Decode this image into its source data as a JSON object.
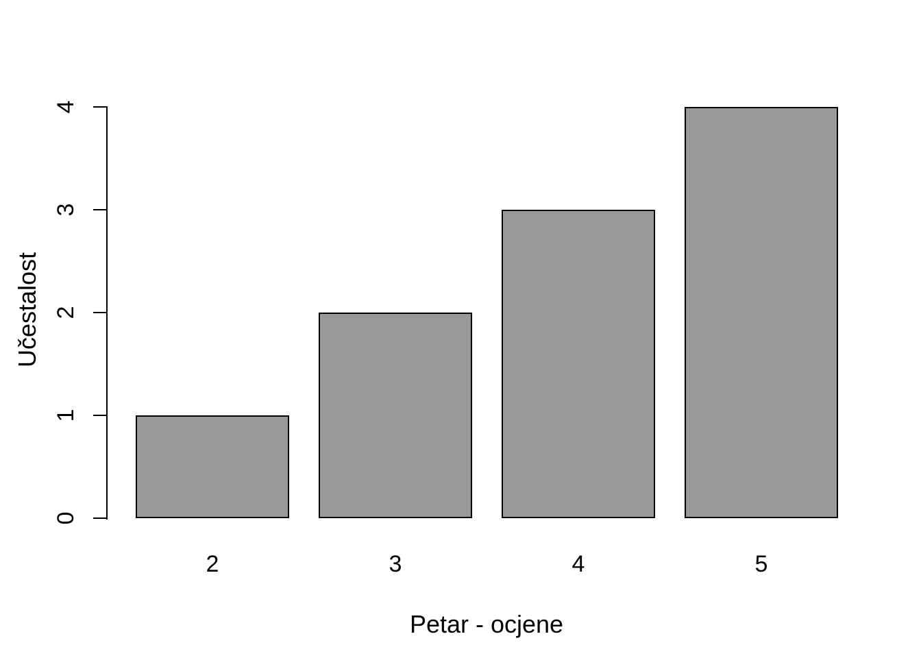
{
  "chart_data": {
    "type": "bar",
    "title": "",
    "categories": [
      "2",
      "3",
      "4",
      "5"
    ],
    "values": [
      1,
      2,
      3,
      4
    ],
    "xlabel": "Petar - ocjene",
    "ylabel": "Učestalost",
    "yticks": [
      0,
      1,
      2,
      3,
      4
    ],
    "ylim": [
      0,
      4
    ],
    "grid": "off",
    "legend": "none",
    "bar_fill_color": "#999999",
    "bar_border_color": "#000000",
    "axis_color": "#000000",
    "background_color": "#ffffff"
  }
}
